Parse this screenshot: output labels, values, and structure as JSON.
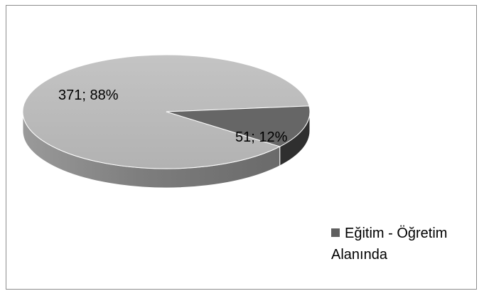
{
  "chart_data": {
    "type": "pie",
    "style": "3d",
    "title": "",
    "slices": [
      {
        "value": 371,
        "percent": 88,
        "label": "371; 88%",
        "color": "#b5b5b5",
        "side_color": "#8a8a8a"
      },
      {
        "value": 51,
        "percent": 12,
        "label": "51; 12%",
        "color": "#666666",
        "side_color": "#2f2f2f"
      }
    ],
    "legend": {
      "placement": "bottom-right",
      "entries": [
        {
          "label": "Eğitim - Öğretim Alanında",
          "color": "#5f5f5f"
        }
      ]
    }
  }
}
